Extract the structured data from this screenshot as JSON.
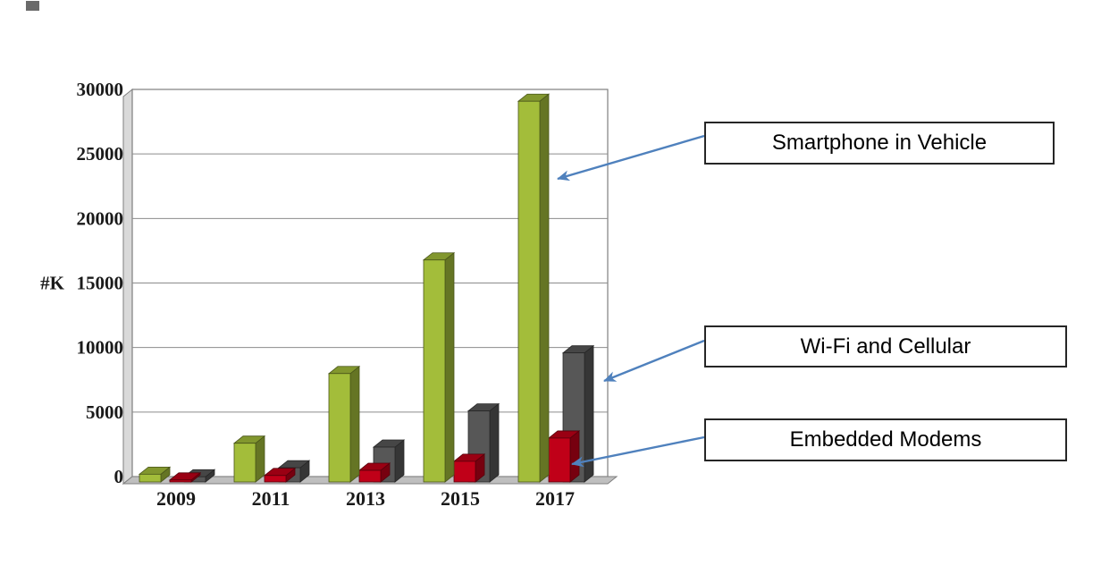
{
  "page": {
    "background": "#ffffff"
  },
  "chart_data": {
    "type": "bar",
    "style": "3d-column",
    "title": "",
    "xlabel": "",
    "ylabel": "#K",
    "categories": [
      "2009",
      "2011",
      "2013",
      "2015",
      "2017"
    ],
    "series": [
      {
        "name": "Smartphone in Vehicle",
        "color": "#a3bd3a",
        "values": [
          600,
          3000,
          8400,
          17200,
          29500
        ]
      },
      {
        "name": "Embedded Modems",
        "color": "#c00018",
        "values": [
          150,
          500,
          900,
          1600,
          3400
        ]
      },
      {
        "name": "Wi-Fi and Cellular",
        "color": "#575757",
        "values": [
          400,
          1100,
          2700,
          5500,
          10000
        ]
      }
    ],
    "ylim": [
      0,
      30000
    ],
    "yticks": [
      0,
      5000,
      10000,
      15000,
      20000,
      25000,
      30000
    ],
    "grid": true,
    "legend_position": "callouts-right"
  },
  "callouts": [
    {
      "label": "Smartphone in Vehicle"
    },
    {
      "label": "Wi-Fi and Cellular"
    },
    {
      "label": "Embedded Modems"
    }
  ],
  "colors": {
    "arrow": "#4f81bd",
    "gridline": "#8c8c8c",
    "plot_border": "#7f7f7f",
    "floor": "#bfbfbf",
    "wall": "#d9d9d9",
    "callout_border": "#262626",
    "text": "#1a1a1a"
  }
}
